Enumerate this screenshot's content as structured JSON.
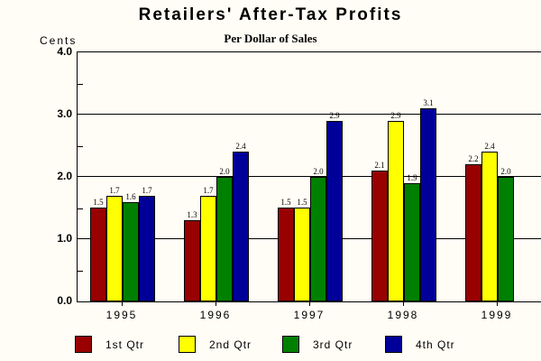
{
  "chart_data": {
    "type": "bar",
    "title": "Retailers' After-Tax Profits",
    "subtitle": "Per Dollar of Sales",
    "ylabel": "Cents",
    "categories": [
      "1995",
      "1996",
      "1997",
      "1998",
      "1999"
    ],
    "series": [
      {
        "name": "1st Qtr",
        "color": "#990000",
        "values": [
          1.5,
          1.3,
          1.5,
          2.1,
          2.2
        ]
      },
      {
        "name": "2nd Qtr",
        "color": "#ffff00",
        "values": [
          1.7,
          1.7,
          1.5,
          2.9,
          2.4
        ]
      },
      {
        "name": "3rd Qtr",
        "color": "#008000",
        "values": [
          1.6,
          2.0,
          2.0,
          1.9,
          2.0
        ]
      },
      {
        "name": "4th Qtr",
        "color": "#000099",
        "values": [
          1.7,
          2.4,
          2.9,
          3.1,
          null
        ]
      }
    ],
    "ylim": [
      0,
      4
    ],
    "ytick_labels": [
      "0.0",
      "1.0",
      "2.0",
      "3.0",
      "4.0"
    ],
    "minor_ticks": [
      0.5,
      1.5,
      2.5,
      3.5
    ],
    "grid": true,
    "legend_position": "bottom",
    "bar_value_labels": true,
    "background_color": "#fffdf5",
    "axis_color": "#000000"
  }
}
